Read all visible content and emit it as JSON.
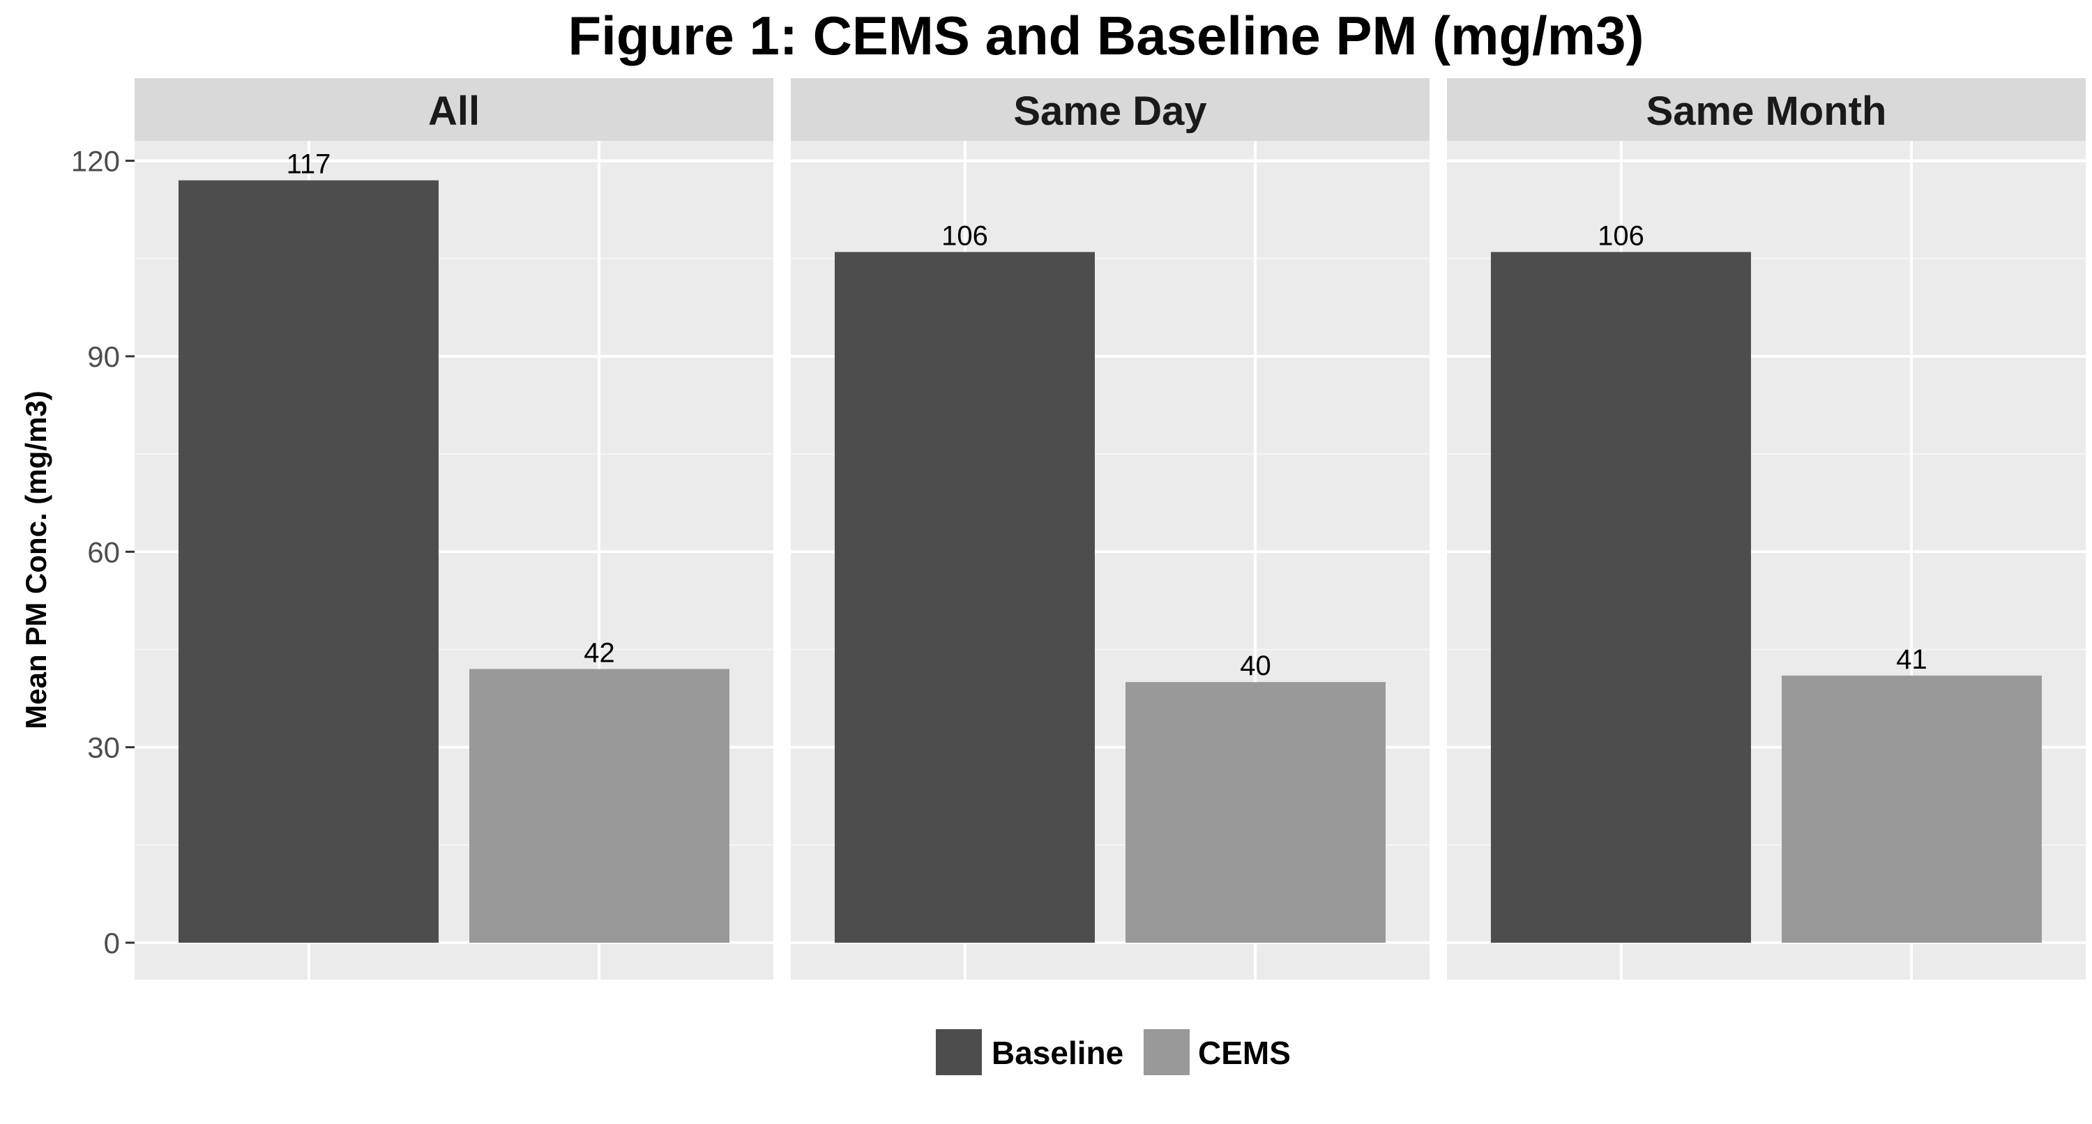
{
  "chart_data": {
    "type": "bar",
    "title": "Figure 1: CEMS and Baseline PM (mg/m3)",
    "ylabel": "Mean PM Conc. (mg/m3)",
    "xlabel": "",
    "ylim": [
      0,
      130
    ],
    "yticks": [
      "0",
      "30",
      "60",
      "90",
      "120"
    ],
    "grid": true,
    "legend_position": "bottom",
    "series": [
      {
        "name": "Baseline",
        "color": "#4d4d4d"
      },
      {
        "name": "CEMS",
        "color": "#999999"
      }
    ],
    "facets": [
      {
        "name": "All",
        "values": [
          117,
          42
        ],
        "labels": [
          "117",
          "42"
        ]
      },
      {
        "name": "Same Day",
        "values": [
          106,
          40
        ],
        "labels": [
          "106",
          "40"
        ]
      },
      {
        "name": "Same Month",
        "values": [
          106,
          41
        ],
        "labels": [
          "106",
          "41"
        ]
      }
    ]
  },
  "colors": {
    "panel_bg": "#ebebeb",
    "strip_bg": "#d9d9d9",
    "grid_major": "#ffffff"
  }
}
